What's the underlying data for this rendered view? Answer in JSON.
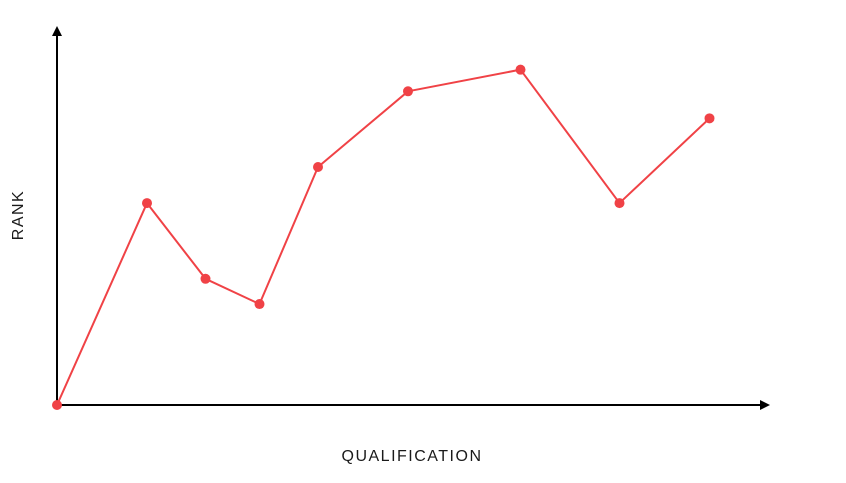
{
  "chart_data": {
    "type": "line",
    "title": "",
    "xlabel": "QUALIFICATION",
    "ylabel": "RANK",
    "x": [
      0,
      1.0,
      1.65,
      2.25,
      2.9,
      3.9,
      5.15,
      6.25,
      7.25
    ],
    "series": [
      {
        "values": [
          0,
          5.6,
          3.5,
          2.8,
          6.6,
          8.7,
          9.3,
          5.6,
          7.95
        ]
      }
    ],
    "xlim": [
      0,
      7.9
    ],
    "ylim": [
      0,
      10.4
    ],
    "grid": false,
    "legend": "none",
    "ticks": "none"
  },
  "colors": {
    "line": "#f04246",
    "axis": "#000000"
  }
}
